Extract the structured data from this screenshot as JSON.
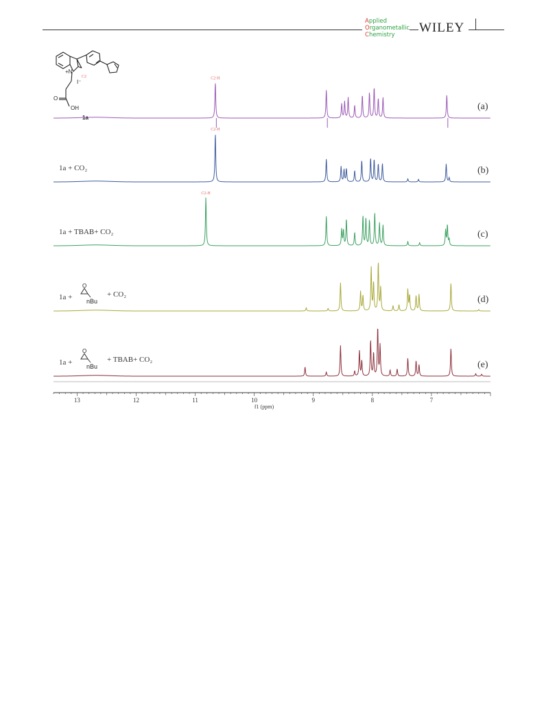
{
  "header": {
    "journal_lines": [
      {
        "cap": "A",
        "rest": "pplied"
      },
      {
        "cap": "O",
        "rest": "rganometallic"
      },
      {
        "cap": "C",
        "rest": "hemistry"
      }
    ],
    "publisher": "WILEY",
    "colors": {
      "journal_text": "#2ea043",
      "journal_cap": "#e0342f"
    }
  },
  "structure": {
    "compound_label": "1a",
    "c2_label": "C2",
    "iodide_label": "I⁻",
    "cation_label": "+N",
    "hydroxyl_label": "OH",
    "carbonyl_label": "O"
  },
  "chart_data": {
    "type": "line",
    "xlabel": "f1 (ppm)",
    "x_axis_reversed": true,
    "xlim": [
      13.4,
      6.0
    ],
    "xticks": [
      13,
      12,
      11,
      10,
      9,
      8,
      7
    ],
    "grid": false,
    "series": [
      {
        "letter": "(a)",
        "label": "",
        "color": "#9b59b6",
        "peak_tag": "C2-H",
        "peak_tag_ppm": 10.66,
        "peaks": [
          {
            "ppm": 10.66,
            "h": 0.7
          },
          {
            "ppm": 8.78,
            "h": 0.55
          },
          {
            "ppm": 8.52,
            "h": 0.28
          },
          {
            "ppm": 8.47,
            "h": 0.32
          },
          {
            "ppm": 8.41,
            "h": 0.4
          },
          {
            "ppm": 8.3,
            "h": 0.25
          },
          {
            "ppm": 8.17,
            "h": 0.45
          },
          {
            "ppm": 8.05,
            "h": 0.5
          },
          {
            "ppm": 7.97,
            "h": 0.6
          },
          {
            "ppm": 7.9,
            "h": 0.38
          },
          {
            "ppm": 7.82,
            "h": 0.4
          },
          {
            "ppm": 6.74,
            "h": 0.45
          }
        ]
      },
      {
        "letter": "(b)",
        "label": "1a + CO₂",
        "color": "#3d5a9c",
        "peak_tag": "C2-H",
        "peak_tag_ppm": 10.66,
        "peaks": [
          {
            "ppm": 10.66,
            "h": 0.95
          },
          {
            "ppm": 8.78,
            "h": 0.45
          },
          {
            "ppm": 8.53,
            "h": 0.3
          },
          {
            "ppm": 8.48,
            "h": 0.24
          },
          {
            "ppm": 8.44,
            "h": 0.26
          },
          {
            "ppm": 8.3,
            "h": 0.22
          },
          {
            "ppm": 8.18,
            "h": 0.42
          },
          {
            "ppm": 8.03,
            "h": 0.46
          },
          {
            "ppm": 7.97,
            "h": 0.44
          },
          {
            "ppm": 7.9,
            "h": 0.35
          },
          {
            "ppm": 7.83,
            "h": 0.36
          },
          {
            "ppm": 7.4,
            "h": 0.06
          },
          {
            "ppm": 7.22,
            "h": 0.05
          },
          {
            "ppm": 6.75,
            "h": 0.35
          },
          {
            "ppm": 6.7,
            "h": 0.08
          }
        ]
      },
      {
        "letter": "(c)",
        "label": "1a + TBAB+ CO₂",
        "color": "#3aa060",
        "peak_tag": "C2-H",
        "peak_tag_ppm": 10.82,
        "peaks": [
          {
            "ppm": 10.82,
            "h": 0.95
          },
          {
            "ppm": 8.78,
            "h": 0.58
          },
          {
            "ppm": 8.52,
            "h": 0.32
          },
          {
            "ppm": 8.49,
            "h": 0.3
          },
          {
            "ppm": 8.44,
            "h": 0.52
          },
          {
            "ppm": 8.3,
            "h": 0.26
          },
          {
            "ppm": 8.16,
            "h": 0.58
          },
          {
            "ppm": 8.11,
            "h": 0.54
          },
          {
            "ppm": 8.05,
            "h": 0.5
          },
          {
            "ppm": 7.96,
            "h": 0.64
          },
          {
            "ppm": 7.88,
            "h": 0.44
          },
          {
            "ppm": 7.82,
            "h": 0.4
          },
          {
            "ppm": 7.4,
            "h": 0.08
          },
          {
            "ppm": 7.2,
            "h": 0.06
          },
          {
            "ppm": 6.76,
            "h": 0.3
          },
          {
            "ppm": 6.73,
            "h": 0.4
          },
          {
            "ppm": 6.7,
            "h": 0.12
          }
        ]
      },
      {
        "letter": "(d)",
        "label": "1a +",
        "label_after": "+ CO₂",
        "epoxide_sub": "nBu",
        "color": "#a8a83a",
        "peaks": [
          {
            "ppm": 9.12,
            "h": 0.06
          },
          {
            "ppm": 8.75,
            "h": 0.05
          },
          {
            "ppm": 8.54,
            "h": 0.55
          },
          {
            "ppm": 8.2,
            "h": 0.38
          },
          {
            "ppm": 8.16,
            "h": 0.3
          },
          {
            "ppm": 8.02,
            "h": 0.85
          },
          {
            "ppm": 7.98,
            "h": 0.55
          },
          {
            "ppm": 7.9,
            "h": 0.95
          },
          {
            "ppm": 7.86,
            "h": 0.45
          },
          {
            "ppm": 7.65,
            "h": 0.1
          },
          {
            "ppm": 7.55,
            "h": 0.12
          },
          {
            "ppm": 7.4,
            "h": 0.42
          },
          {
            "ppm": 7.37,
            "h": 0.3
          },
          {
            "ppm": 7.26,
            "h": 0.3
          },
          {
            "ppm": 7.21,
            "h": 0.32
          },
          {
            "ppm": 6.67,
            "h": 0.55
          },
          {
            "ppm": 6.2,
            "h": 0.03
          }
        ]
      },
      {
        "letter": "(e)",
        "label": "1a +",
        "label_after": "+ TBAB+ CO₂",
        "epoxide_sub": "nBu",
        "color": "#8b2f3a",
        "peaks": [
          {
            "ppm": 9.14,
            "h": 0.18
          },
          {
            "ppm": 8.78,
            "h": 0.08
          },
          {
            "ppm": 8.54,
            "h": 0.6
          },
          {
            "ppm": 8.3,
            "h": 0.1
          },
          {
            "ppm": 8.22,
            "h": 0.5
          },
          {
            "ppm": 8.18,
            "h": 0.3
          },
          {
            "ppm": 8.03,
            "h": 0.7
          },
          {
            "ppm": 7.98,
            "h": 0.45
          },
          {
            "ppm": 7.91,
            "h": 0.95
          },
          {
            "ppm": 7.87,
            "h": 0.6
          },
          {
            "ppm": 7.7,
            "h": 0.12
          },
          {
            "ppm": 7.58,
            "h": 0.14
          },
          {
            "ppm": 7.4,
            "h": 0.35
          },
          {
            "ppm": 7.26,
            "h": 0.3
          },
          {
            "ppm": 7.21,
            "h": 0.22
          },
          {
            "ppm": 6.67,
            "h": 0.55
          },
          {
            "ppm": 6.25,
            "h": 0.05
          },
          {
            "ppm": 6.15,
            "h": 0.04
          }
        ]
      }
    ]
  }
}
